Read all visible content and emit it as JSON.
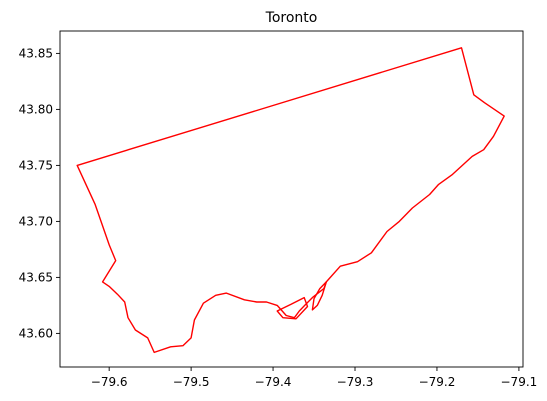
{
  "map": {
    "title": "Toronto",
    "boundary_color": "#ff0000",
    "x_axis": {
      "range": [
        -79.66,
        -79.095
      ],
      "ticks": [
        -79.6,
        -79.5,
        -79.4,
        -79.3,
        -79.2,
        -79.1
      ],
      "tick_labels": [
        "−79.6",
        "−79.5",
        "−79.4",
        "−79.3",
        "−79.2",
        "−79.1"
      ]
    },
    "y_axis": {
      "range": [
        43.57,
        43.87
      ],
      "ticks": [
        43.6,
        43.65,
        43.7,
        43.75,
        43.8,
        43.85
      ],
      "tick_labels": [
        "43.60",
        "43.65",
        "43.70",
        "43.75",
        "43.80",
        "43.85"
      ]
    },
    "boundary": [
      [
        -79.639,
        43.75
      ],
      [
        -79.17,
        43.855
      ],
      [
        -79.155,
        43.813
      ],
      [
        -79.142,
        43.806
      ],
      [
        -79.118,
        43.794
      ],
      [
        -79.131,
        43.776
      ],
      [
        -79.143,
        43.764
      ],
      [
        -79.157,
        43.758
      ],
      [
        -79.181,
        43.742
      ],
      [
        -79.198,
        43.733
      ],
      [
        -79.209,
        43.724
      ],
      [
        -79.23,
        43.712
      ],
      [
        -79.246,
        43.7
      ],
      [
        -79.261,
        43.691
      ],
      [
        -79.28,
        43.672
      ],
      [
        -79.297,
        43.664
      ],
      [
        -79.318,
        43.66
      ],
      [
        -79.335,
        43.646
      ],
      [
        -79.338,
        43.64
      ],
      [
        -79.345,
        43.636
      ],
      [
        -79.352,
        43.632
      ],
      [
        -79.36,
        43.626
      ],
      [
        -79.368,
        43.62
      ],
      [
        -79.374,
        43.614
      ],
      [
        -79.384,
        43.616
      ],
      [
        -79.395,
        43.625
      ],
      [
        -79.408,
        43.628
      ],
      [
        -79.42,
        43.628
      ],
      [
        -79.435,
        43.63
      ],
      [
        -79.457,
        43.636
      ],
      [
        -79.47,
        43.634
      ],
      [
        -79.485,
        43.627
      ],
      [
        -79.496,
        43.612
      ],
      [
        -79.5,
        43.596
      ],
      [
        -79.51,
        43.589
      ],
      [
        -79.525,
        43.588
      ],
      [
        -79.545,
        43.583
      ],
      [
        -79.553,
        43.596
      ],
      [
        -79.568,
        43.603
      ],
      [
        -79.577,
        43.614
      ],
      [
        -79.581,
        43.628
      ],
      [
        -79.59,
        43.635
      ],
      [
        -79.6,
        43.642
      ],
      [
        -79.608,
        43.646
      ],
      [
        -79.592,
        43.665
      ],
      [
        -79.6,
        43.679
      ],
      [
        -79.617,
        43.715
      ],
      [
        -79.639,
        43.75
      ]
    ],
    "islands": [
      [
        [
          -79.395,
          43.62
        ],
        [
          -79.378,
          43.626
        ],
        [
          -79.362,
          43.632
        ],
        [
          -79.358,
          43.624
        ],
        [
          -79.372,
          43.613
        ],
        [
          -79.388,
          43.614
        ],
        [
          -79.395,
          43.62
        ]
      ],
      [
        [
          -79.335,
          43.646
        ],
        [
          -79.34,
          43.634
        ],
        [
          -79.346,
          43.625
        ],
        [
          -79.352,
          43.621
        ],
        [
          -79.35,
          43.631
        ],
        [
          -79.343,
          43.64
        ],
        [
          -79.335,
          43.646
        ]
      ]
    ]
  }
}
